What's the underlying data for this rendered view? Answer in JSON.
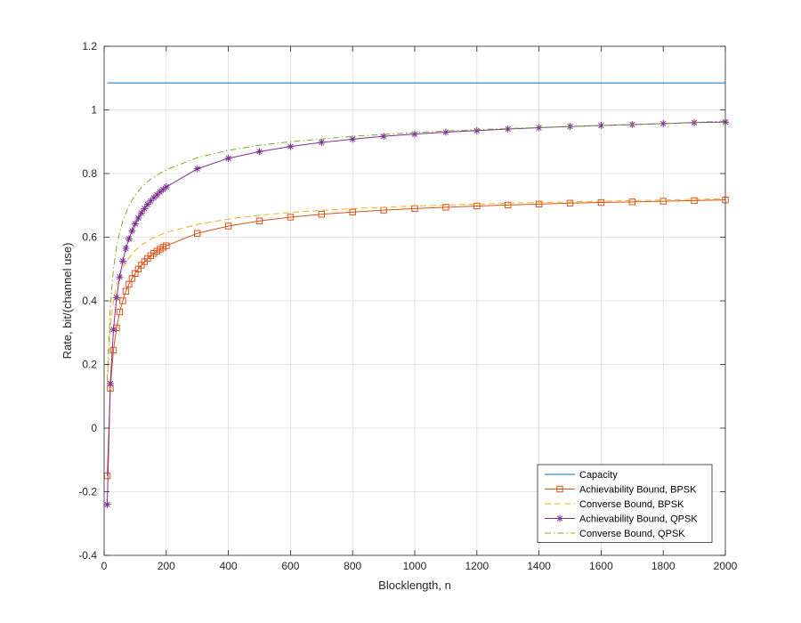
{
  "chart_data": {
    "type": "line",
    "title": "",
    "xlabel": "Blocklength, n",
    "ylabel": "Rate, bit/(channel use)",
    "xlim": [
      0,
      2000
    ],
    "ylim": [
      -0.4,
      1.2
    ],
    "xticks": [
      0,
      200,
      400,
      600,
      800,
      1000,
      1200,
      1400,
      1600,
      1800,
      2000
    ],
    "yticks": [
      -0.4,
      -0.2,
      0,
      0.2,
      0.4,
      0.6,
      0.8,
      1,
      1.2
    ],
    "xtick_labels": [
      "0",
      "200",
      "400",
      "600",
      "800",
      "1000",
      "1200",
      "1400",
      "1600",
      "1800",
      "2000"
    ],
    "ytick_labels": [
      "-0.4",
      "-0.2",
      "0",
      "0.2",
      "0.4",
      "0.6",
      "0.8",
      "1",
      "1.2"
    ],
    "grid": true,
    "legend_position": "bottom-right",
    "series": [
      {
        "name": "Capacity",
        "color": "#0072BD",
        "style": "solid",
        "marker": "none",
        "x": [
          10,
          2000
        ],
        "y": [
          1.085,
          1.085
        ]
      },
      {
        "name": "Achievability Bound, BPSK",
        "color": "#D95319",
        "style": "solid",
        "marker": "square",
        "x": [
          10,
          20,
          30,
          40,
          50,
          60,
          70,
          80,
          90,
          100,
          110,
          120,
          130,
          140,
          150,
          160,
          170,
          180,
          190,
          200,
          300,
          400,
          500,
          600,
          700,
          800,
          900,
          1000,
          1100,
          1200,
          1300,
          1400,
          1500,
          1600,
          1700,
          1800,
          1900,
          2000
        ],
        "y": [
          -0.15,
          0.125,
          0.245,
          0.315,
          0.365,
          0.4,
          0.43,
          0.452,
          0.47,
          0.486,
          0.5,
          0.512,
          0.523,
          0.533,
          0.542,
          0.549,
          0.556,
          0.562,
          0.568,
          0.573,
          0.612,
          0.635,
          0.651,
          0.663,
          0.672,
          0.679,
          0.685,
          0.69,
          0.694,
          0.698,
          0.701,
          0.704,
          0.707,
          0.709,
          0.711,
          0.713,
          0.715,
          0.717
        ]
      },
      {
        "name": "Converse Bound, BPSK",
        "color": "#EDB120",
        "style": "dashed",
        "marker": "none",
        "x": [
          10,
          20,
          30,
          40,
          50,
          60,
          80,
          100,
          120,
          150,
          200,
          300,
          400,
          500,
          600,
          800,
          1000,
          1200,
          1400,
          1600,
          1800,
          2000
        ],
        "y": [
          0.14,
          0.32,
          0.4,
          0.45,
          0.48,
          0.505,
          0.535,
          0.558,
          0.575,
          0.594,
          0.615,
          0.64,
          0.657,
          0.669,
          0.678,
          0.69,
          0.698,
          0.704,
          0.709,
          0.713,
          0.717,
          0.721
        ]
      },
      {
        "name": "Achievability Bound, QPSK",
        "color": "#7E2F8E",
        "style": "solid",
        "marker": "asterisk",
        "x": [
          10,
          20,
          30,
          40,
          50,
          60,
          70,
          80,
          90,
          100,
          110,
          120,
          130,
          140,
          150,
          160,
          170,
          180,
          190,
          200,
          300,
          400,
          500,
          600,
          700,
          800,
          900,
          1000,
          1100,
          1200,
          1300,
          1400,
          1500,
          1600,
          1700,
          1800,
          1900,
          2000
        ],
        "y": [
          -0.24,
          0.14,
          0.31,
          0.41,
          0.475,
          0.525,
          0.565,
          0.595,
          0.62,
          0.642,
          0.66,
          0.676,
          0.69,
          0.703,
          0.714,
          0.724,
          0.733,
          0.742,
          0.75,
          0.758,
          0.815,
          0.848,
          0.869,
          0.885,
          0.898,
          0.908,
          0.917,
          0.924,
          0.93,
          0.935,
          0.94,
          0.944,
          0.948,
          0.951,
          0.954,
          0.957,
          0.96,
          0.962
        ]
      },
      {
        "name": "Converse Bound, QPSK",
        "color": "#77AC30",
        "style": "dashdot",
        "marker": "none",
        "x": [
          10,
          20,
          30,
          40,
          50,
          60,
          80,
          100,
          120,
          150,
          200,
          300,
          400,
          500,
          600,
          800,
          1000,
          1200,
          1400,
          1600,
          1800,
          2000
        ],
        "y": [
          0.15,
          0.38,
          0.5,
          0.57,
          0.615,
          0.65,
          0.7,
          0.733,
          0.756,
          0.783,
          0.812,
          0.85,
          0.873,
          0.889,
          0.9,
          0.917,
          0.929,
          0.938,
          0.945,
          0.951,
          0.957,
          0.965
        ]
      }
    ]
  }
}
